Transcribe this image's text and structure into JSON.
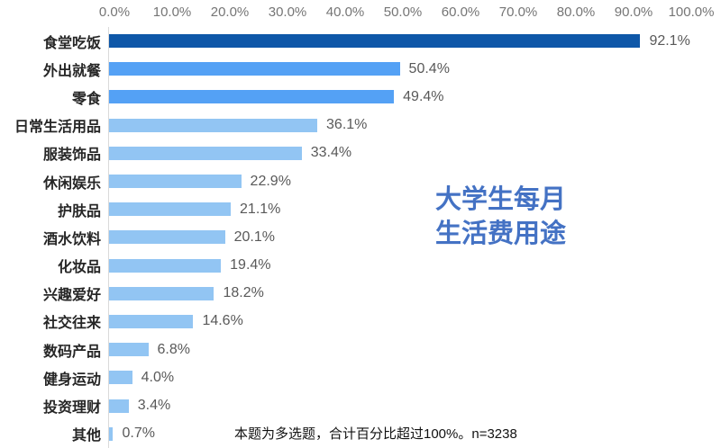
{
  "title": {
    "line1": "大学生每月",
    "line2": "生活费用途",
    "color": "#4472C4"
  },
  "footnote": "本题为多选题，合计百分比超过100%。n=3238",
  "chart_data": {
    "type": "bar",
    "orientation": "horizontal",
    "title": "大学生每月生活费用途",
    "xlabel": "",
    "ylabel": "",
    "xlim": [
      0,
      100
    ],
    "grid": false,
    "legend": false,
    "x_ticks": [
      "0.0%",
      "10.0%",
      "20.0%",
      "30.0%",
      "40.0%",
      "50.0%",
      "60.0%",
      "70.0%",
      "80.0%",
      "90.0%",
      "100.0%"
    ],
    "categories": [
      "食堂吃饭",
      "外出就餐",
      "零食",
      "日常生活用品",
      "服装饰品",
      "休闲娱乐",
      "护肤品",
      "酒水饮料",
      "化妆品",
      "兴趣爱好",
      "社交往来",
      "数码产品",
      "健身运动",
      "投资理财",
      "其他"
    ],
    "values": [
      92.1,
      50.4,
      49.4,
      36.1,
      33.4,
      22.9,
      21.1,
      20.1,
      19.4,
      18.2,
      14.6,
      6.8,
      4.0,
      3.4,
      0.7
    ],
    "value_labels": [
      "92.1%",
      "50.4%",
      "49.4%",
      "36.1%",
      "33.4%",
      "22.9%",
      "21.1%",
      "20.1%",
      "19.4%",
      "18.2%",
      "14.6%",
      "6.8%",
      "4.0%",
      "3.4%",
      "0.7%"
    ],
    "bar_colors": [
      "#0E57A8",
      "#54A1F5",
      "#54A1F5",
      "#92C5F3",
      "#92C5F3",
      "#92C5F3",
      "#92C5F3",
      "#92C5F3",
      "#92C5F3",
      "#92C5F3",
      "#92C5F3",
      "#92C5F3",
      "#92C5F3",
      "#92C5F3",
      "#92C5F3"
    ],
    "note": "本题为多选题，合计百分比超过100%。n=3238"
  }
}
